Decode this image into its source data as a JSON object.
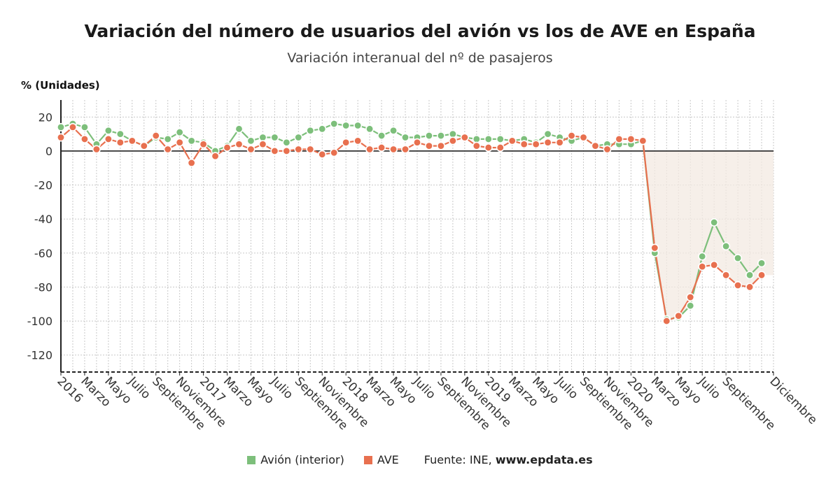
{
  "chart_data": {
    "type": "line",
    "title": "Variación del número de usuarios del avión vs los de AVE en España",
    "subtitle": "Variación interanual del nº de pasajeros",
    "ylabel": "% (Unidades)",
    "ylim": [
      -130,
      30
    ],
    "yticks": [
      20,
      0,
      -20,
      -40,
      -60,
      -80,
      -100,
      -120
    ],
    "grid": true,
    "legend_position": "bottom",
    "x": [
      "2016-01",
      "2016-02",
      "2016-03",
      "2016-04",
      "2016-05",
      "2016-06",
      "2016-07",
      "2016-08",
      "2016-09",
      "2016-10",
      "2016-11",
      "2016-12",
      "2017-01",
      "2017-02",
      "2017-03",
      "2017-04",
      "2017-05",
      "2017-06",
      "2017-07",
      "2017-08",
      "2017-09",
      "2017-10",
      "2017-11",
      "2017-12",
      "2018-01",
      "2018-02",
      "2018-03",
      "2018-04",
      "2018-05",
      "2018-06",
      "2018-07",
      "2018-08",
      "2018-09",
      "2018-10",
      "2018-11",
      "2018-12",
      "2019-01",
      "2019-02",
      "2019-03",
      "2019-04",
      "2019-05",
      "2019-06",
      "2019-07",
      "2019-08",
      "2019-09",
      "2019-10",
      "2019-11",
      "2019-12",
      "2020-01",
      "2020-02",
      "2020-03",
      "2020-04",
      "2020-05",
      "2020-06",
      "2020-07",
      "2020-08",
      "2020-09",
      "2020-10",
      "2020-11",
      "2020-12",
      "2021-01"
    ],
    "tick_labels": [
      {
        "i": 0,
        "label": "2016"
      },
      {
        "i": 2,
        "label": "Marzo"
      },
      {
        "i": 4,
        "label": "Mayo"
      },
      {
        "i": 6,
        "label": "Julio"
      },
      {
        "i": 8,
        "label": "Septiembre"
      },
      {
        "i": 10,
        "label": "Noviembre"
      },
      {
        "i": 12,
        "label": "2017"
      },
      {
        "i": 14,
        "label": "Marzo"
      },
      {
        "i": 16,
        "label": "Mayo"
      },
      {
        "i": 18,
        "label": "Julio"
      },
      {
        "i": 20,
        "label": "Septiembre"
      },
      {
        "i": 22,
        "label": "Noviembre"
      },
      {
        "i": 24,
        "label": "2018"
      },
      {
        "i": 26,
        "label": "Marzo"
      },
      {
        "i": 28,
        "label": "Mayo"
      },
      {
        "i": 30,
        "label": "Julio"
      },
      {
        "i": 32,
        "label": "Septiembre"
      },
      {
        "i": 34,
        "label": "Noviembre"
      },
      {
        "i": 36,
        "label": "2019"
      },
      {
        "i": 38,
        "label": "Marzo"
      },
      {
        "i": 40,
        "label": "Mayo"
      },
      {
        "i": 42,
        "label": "Julio"
      },
      {
        "i": 44,
        "label": "Septiembre"
      },
      {
        "i": 46,
        "label": "Noviembre"
      },
      {
        "i": 48,
        "label": "2020"
      },
      {
        "i": 50,
        "label": "Marzo"
      },
      {
        "i": 52,
        "label": "Mayo"
      },
      {
        "i": 54,
        "label": "Julio"
      },
      {
        "i": 56,
        "label": "Septiembre"
      },
      {
        "i": 60,
        "label": "Diciembre"
      }
    ],
    "series": [
      {
        "name": "Avión (interior)",
        "color": "#7dbf7b",
        "values": [
          14,
          16,
          14,
          4,
          12,
          10,
          6,
          3,
          8,
          7,
          11,
          6,
          5,
          0,
          3,
          13,
          6,
          8,
          8,
          5,
          8,
          12,
          13,
          16,
          15,
          15,
          13,
          9,
          12,
          8,
          8,
          9,
          9,
          10,
          8,
          7,
          7,
          7,
          6,
          7,
          5,
          10,
          8,
          6,
          8,
          3,
          4,
          4,
          4,
          6,
          -60,
          -99,
          -98,
          -91,
          -62,
          -42,
          -56,
          -63,
          -73,
          -66,
          null
        ]
      },
      {
        "name": "AVE",
        "color": "#e8704f",
        "values": [
          8,
          14,
          7,
          1,
          7,
          5,
          6,
          3,
          9,
          1,
          5,
          -7,
          4,
          -3,
          2,
          4,
          1,
          4,
          0,
          0,
          1,
          1,
          -2,
          -1,
          5,
          6,
          1,
          2,
          1,
          1,
          5,
          3,
          3,
          6,
          8,
          3,
          2,
          2,
          6,
          4,
          4,
          5,
          5,
          9,
          8,
          3,
          1,
          7,
          7,
          6,
          -57,
          -100,
          -97,
          -86,
          -68,
          -67,
          -73,
          -79,
          -80,
          -73,
          null
        ]
      }
    ],
    "source_label": "Fuente: INE,",
    "source_site": "www.epdata.es"
  }
}
